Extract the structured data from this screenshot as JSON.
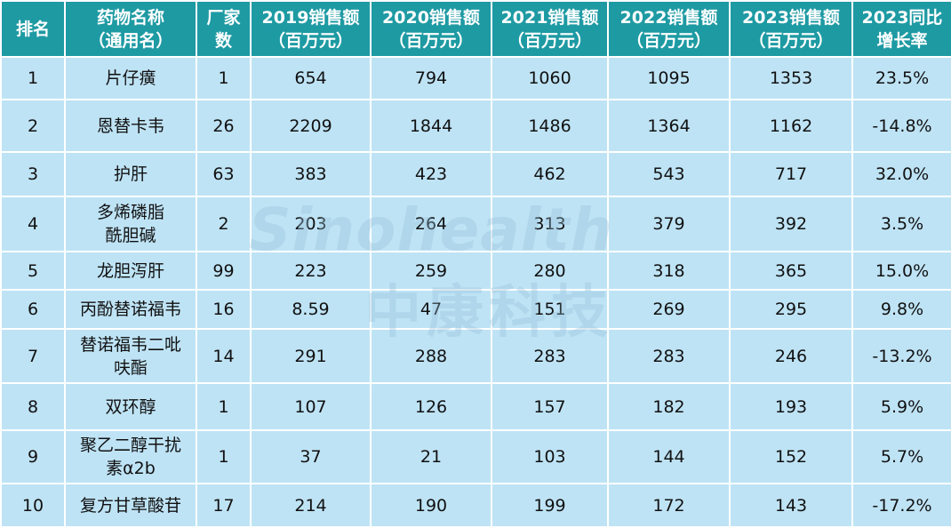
{
  "table": {
    "header": [
      "排名",
      "药物名称\n（通用名）",
      "厂家\n数",
      "2019销售额\n（百万元）",
      "2020销售额\n（百万元）",
      "2021销售额\n（百万元）",
      "2022销售额\n（百万元）",
      "2023销售额\n（百万元）",
      "2023同比\n增长率"
    ],
    "rows": [
      [
        "1",
        "片仔癀",
        "1",
        "654",
        "794",
        "1060",
        "1095",
        "1353",
        "23.5%"
      ],
      [
        "2",
        "恩替卡韦",
        "26",
        "2209",
        "1844",
        "1486",
        "1364",
        "1162",
        "-14.8%"
      ],
      [
        "3",
        "护肝",
        "63",
        "383",
        "423",
        "462",
        "543",
        "717",
        "32.0%"
      ],
      [
        "4",
        "多烯磷脂\n酰胆碱",
        "2",
        "203",
        "264",
        "313",
        "379",
        "392",
        "3.5%"
      ],
      [
        "5",
        "龙胆泻肝",
        "99",
        "223",
        "259",
        "280",
        "318",
        "365",
        "15.0%"
      ],
      [
        "6",
        "丙酚替诺福韦",
        "16",
        "8.59",
        "47",
        "151",
        "269",
        "295",
        "9.8%"
      ],
      [
        "7",
        "替诺福韦二吡\n呋酯",
        "14",
        "291",
        "288",
        "283",
        "283",
        "246",
        "-13.2%"
      ],
      [
        "8",
        "双环醇",
        "1",
        "107",
        "126",
        "157",
        "182",
        "193",
        "5.9%"
      ],
      [
        "9",
        "聚乙二醇干扰\n素α2b",
        "1",
        "37",
        "21",
        "103",
        "144",
        "152",
        "5.7%"
      ],
      [
        "10",
        "复方甘草酸苷",
        "17",
        "214",
        "190",
        "199",
        "172",
        "143",
        "-17.2%"
      ]
    ]
  },
  "watermark": {
    "brand": "Sinohealth",
    "name": "中康科技"
  }
}
